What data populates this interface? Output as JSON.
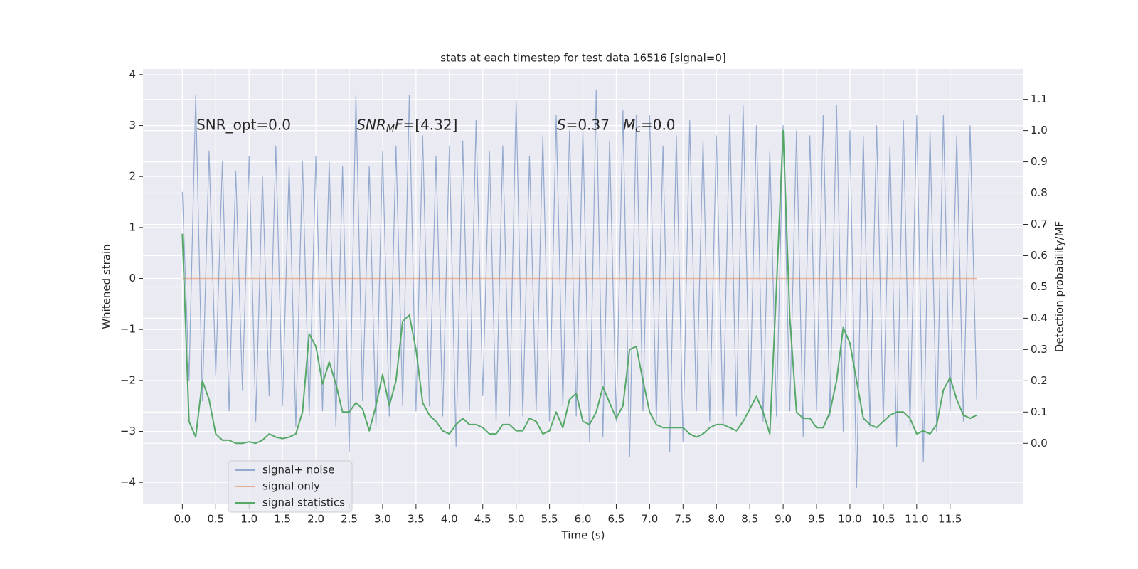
{
  "chart_data": {
    "type": "line",
    "title": "stats at each timestep for test data 16516 [signal=0]",
    "xlabel": "Time (s)",
    "ylabel": "Whitened strain",
    "y2label": "Detection probability/MF",
    "annotations": [
      [
        {
          "text": "SNR_opt=0.0",
          "style": "normal"
        }
      ],
      [
        {
          "text": "SNR",
          "style": "italic"
        },
        {
          "text": "M",
          "style": "sub"
        },
        {
          "text": "F",
          "style": "italic"
        },
        {
          "text": "=[4.32]",
          "style": "normal"
        }
      ],
      [
        {
          "text": "S",
          "style": "italic"
        },
        {
          "text": "=0.37   ",
          "style": "normal"
        },
        {
          "text": "M",
          "style": "italic"
        },
        {
          "text": "c",
          "style": "sub"
        },
        {
          "text": "=0.0",
          "style": "normal"
        }
      ]
    ],
    "x": [
      0,
      0.1,
      0.2,
      0.3,
      0.4,
      0.5,
      0.6,
      0.7,
      0.8,
      0.9,
      1,
      1.1,
      1.2,
      1.3,
      1.4,
      1.5,
      1.6,
      1.7,
      1.8,
      1.9,
      2,
      2.1,
      2.2,
      2.3,
      2.4,
      2.5,
      2.6,
      2.7,
      2.8,
      2.9,
      3,
      3.1,
      3.2,
      3.3,
      3.4,
      3.5,
      3.6,
      3.7,
      3.8,
      3.9,
      4,
      4.1,
      4.2,
      4.3,
      4.4,
      4.5,
      4.6,
      4.7,
      4.8,
      4.9,
      5,
      5.1,
      5.2,
      5.3,
      5.4,
      5.5,
      5.6,
      5.7,
      5.8,
      5.9,
      6,
      6.1,
      6.2,
      6.3,
      6.4,
      6.5,
      6.6,
      6.7,
      6.8,
      6.9,
      7,
      7.1,
      7.2,
      7.3,
      7.4,
      7.5,
      7.6,
      7.7,
      7.8,
      7.9,
      8,
      8.1,
      8.2,
      8.3,
      8.4,
      8.5,
      8.6,
      8.7,
      8.8,
      8.9,
      9,
      9.1,
      9.2,
      9.3,
      9.4,
      9.5,
      9.6,
      9.7,
      9.8,
      9.9,
      10,
      10.1,
      10.2,
      10.3,
      10.4,
      10.5,
      10.6,
      10.7,
      10.8,
      10.9,
      11,
      11.1,
      11.2,
      11.3,
      11.4,
      11.5,
      11.6,
      11.7,
      11.8,
      11.9
    ],
    "series": [
      {
        "name": "signal+ noise",
        "color": "#4c72b0",
        "axis": "y",
        "values": [
          1.7,
          -2.0,
          3.6,
          -2.4,
          2.5,
          -1.9,
          2.3,
          -2.6,
          2.1,
          -2.2,
          2.4,
          -2.8,
          2.0,
          -2.3,
          2.6,
          -2.5,
          2.2,
          -2.9,
          2.3,
          -2.7,
          2.4,
          -2.6,
          2.3,
          -2.9,
          2.2,
          -3.4,
          3.6,
          -2.4,
          2.2,
          -2.9,
          2.5,
          -2.7,
          2.6,
          -2.5,
          3.6,
          -2.6,
          2.8,
          -2.5,
          2.4,
          -2.7,
          2.6,
          -3.3,
          2.7,
          -2.6,
          3.1,
          -2.3,
          2.5,
          -2.8,
          2.6,
          -2.7,
          3.5,
          -2.7,
          2.4,
          -2.6,
          2.8,
          -2.8,
          3.2,
          -2.5,
          2.9,
          -2.7,
          2.9,
          -3.2,
          3.7,
          -3.1,
          2.7,
          -2.8,
          3.3,
          -3.5,
          3.2,
          -2.6,
          3.2,
          -2.8,
          2.6,
          -3.4,
          2.8,
          -3.2,
          3.1,
          -2.6,
          2.7,
          -2.8,
          2.8,
          -2.9,
          3.2,
          -2.7,
          3.4,
          -2.6,
          3.0,
          -2.8,
          2.5,
          -2.7,
          3.0,
          -2.6,
          2.9,
          -3.1,
          2.8,
          -2.6,
          3.2,
          -2.7,
          3.4,
          -3.0,
          2.9,
          -4.1,
          2.8,
          -2.9,
          3.0,
          -2.8,
          2.6,
          -3.3,
          3.1,
          -2.9,
          3.2,
          -3.6,
          2.9,
          -3.0,
          3.2,
          -2.6,
          2.8,
          -2.8,
          3.0,
          -2.4
        ]
      },
      {
        "name": "signal only",
        "color": "#dd8452",
        "axis": "y",
        "values": [
          0,
          0,
          0,
          0,
          0,
          0,
          0,
          0,
          0,
          0,
          0,
          0,
          0,
          0,
          0,
          0,
          0,
          0,
          0,
          0,
          0,
          0,
          0,
          0,
          0,
          0,
          0,
          0,
          0,
          0,
          0,
          0,
          0,
          0,
          0,
          0,
          0,
          0,
          0,
          0,
          0,
          0,
          0,
          0,
          0,
          0,
          0,
          0,
          0,
          0,
          0,
          0,
          0,
          0,
          0,
          0,
          0,
          0,
          0,
          0,
          0,
          0,
          0,
          0,
          0,
          0,
          0,
          0,
          0,
          0,
          0,
          0,
          0,
          0,
          0,
          0,
          0,
          0,
          0,
          0,
          0,
          0,
          0,
          0,
          0,
          0,
          0,
          0,
          0,
          0,
          0,
          0,
          0,
          0,
          0,
          0,
          0,
          0,
          0,
          0,
          0,
          0,
          0,
          0,
          0,
          0,
          0,
          0,
          0,
          0,
          0,
          0,
          0,
          0,
          0,
          0,
          0,
          0,
          0,
          0
        ]
      },
      {
        "name": "signal statistics",
        "color": "#55a868",
        "axis": "y2",
        "values": [
          0.67,
          0.07,
          0.02,
          0.2,
          0.14,
          0.03,
          0.01,
          0.01,
          0,
          0,
          0.005,
          0,
          0.01,
          0.03,
          0.02,
          0.015,
          0.02,
          0.03,
          0.1,
          0.35,
          0.31,
          0.19,
          0.26,
          0.19,
          0.1,
          0.1,
          0.13,
          0.11,
          0.04,
          0.12,
          0.22,
          0.12,
          0.2,
          0.39,
          0.41,
          0.3,
          0.13,
          0.09,
          0.07,
          0.04,
          0.03,
          0.06,
          0.08,
          0.06,
          0.06,
          0.05,
          0.03,
          0.03,
          0.06,
          0.06,
          0.04,
          0.04,
          0.08,
          0.07,
          0.03,
          0.04,
          0.1,
          0.05,
          0.14,
          0.16,
          0.07,
          0.06,
          0.1,
          0.18,
          0.13,
          0.08,
          0.12,
          0.3,
          0.31,
          0.2,
          0.1,
          0.06,
          0.05,
          0.05,
          0.05,
          0.05,
          0.03,
          0.02,
          0.03,
          0.05,
          0.06,
          0.06,
          0.05,
          0.04,
          0.07,
          0.11,
          0.15,
          0.1,
          0.03,
          0.5,
          1.0,
          0.4,
          0.1,
          0.08,
          0.08,
          0.05,
          0.05,
          0.1,
          0.2,
          0.37,
          0.32,
          0.2,
          0.08,
          0.06,
          0.05,
          0.07,
          0.09,
          0.1,
          0.1,
          0.08,
          0.03,
          0.04,
          0.03,
          0.06,
          0.17,
          0.21,
          0.14,
          0.09,
          0.08,
          0.09
        ]
      }
    ],
    "xlim": [
      -0.59,
      12.6
    ],
    "ylim": [
      -4.43,
      4.11
    ],
    "y2lim": [
      -0.195,
      1.197
    ],
    "xticks": [
      {
        "value": 0,
        "label": "0.0"
      },
      {
        "value": 0.5,
        "label": "0.5"
      },
      {
        "value": 1,
        "label": "1.0"
      },
      {
        "value": 1.5,
        "label": "1.5"
      },
      {
        "value": 2,
        "label": "2.0"
      },
      {
        "value": 2.5,
        "label": "2.5"
      },
      {
        "value": 3,
        "label": "3.0"
      },
      {
        "value": 3.5,
        "label": "3.5"
      },
      {
        "value": 4,
        "label": "4.0"
      },
      {
        "value": 4.5,
        "label": "4.5"
      },
      {
        "value": 5,
        "label": "5.0"
      },
      {
        "value": 5.5,
        "label": "5.5"
      },
      {
        "value": 6,
        "label": "6.0"
      },
      {
        "value": 6.5,
        "label": "6.5"
      },
      {
        "value": 7,
        "label": "7.0"
      },
      {
        "value": 7.5,
        "label": "7.5"
      },
      {
        "value": 8,
        "label": "8.0"
      },
      {
        "value": 8.5,
        "label": "8.5"
      },
      {
        "value": 9,
        "label": "9.0"
      },
      {
        "value": 9.5,
        "label": "9.5"
      },
      {
        "value": 10,
        "label": "10.0"
      },
      {
        "value": 10.5,
        "label": "10.5"
      },
      {
        "value": 11,
        "label": "11.0"
      },
      {
        "value": 11.5,
        "label": "11.5"
      }
    ],
    "yticks": [
      {
        "value": -4,
        "label": "−4"
      },
      {
        "value": -3,
        "label": "−3"
      },
      {
        "value": -2,
        "label": "−2"
      },
      {
        "value": -1,
        "label": "−1"
      },
      0,
      1,
      2,
      3,
      4
    ],
    "y2ticks": [
      {
        "value": 0,
        "label": "0.0"
      },
      {
        "value": 0.1,
        "label": "0.1"
      },
      {
        "value": 0.2,
        "label": "0.2"
      },
      {
        "value": 0.3,
        "label": "0.3"
      },
      {
        "value": 0.4,
        "label": "0.4"
      },
      {
        "value": 0.5,
        "label": "0.5"
      },
      {
        "value": 0.6,
        "label": "0.6"
      },
      {
        "value": 0.7,
        "label": "0.7"
      },
      {
        "value": 0.8,
        "label": "0.8"
      },
      {
        "value": 0.9,
        "label": "0.9"
      },
      {
        "value": 1,
        "label": "1.0"
      },
      {
        "value": 1.1,
        "label": "1.1"
      }
    ],
    "grid": true,
    "legend": "lower left",
    "background": "#eaeaf2"
  }
}
